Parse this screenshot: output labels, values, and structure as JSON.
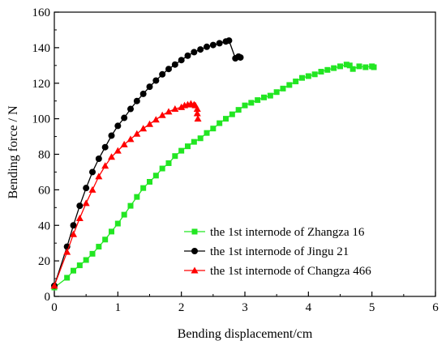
{
  "chart_data": {
    "type": "line",
    "title": "",
    "xlabel": "Bending displacement/cm",
    "ylabel": "Bending force / N",
    "xlim": [
      0,
      6
    ],
    "ylim": [
      0,
      160
    ],
    "xticks": [
      0,
      1,
      2,
      3,
      4,
      5,
      6
    ],
    "yticks": [
      0,
      20,
      40,
      60,
      80,
      100,
      120,
      140,
      160
    ],
    "grid": false,
    "legend_position": "bottom-right",
    "series": [
      {
        "name": "the 1st internode of Zhangza 16",
        "color": "#22e622",
        "marker": "square",
        "x": [
          0,
          0.2,
          0.3,
          0.4,
          0.5,
          0.6,
          0.7,
          0.8,
          0.9,
          1.0,
          1.1,
          1.2,
          1.3,
          1.4,
          1.5,
          1.6,
          1.7,
          1.8,
          1.9,
          2.0,
          2.1,
          2.2,
          2.3,
          2.4,
          2.5,
          2.6,
          2.7,
          2.8,
          2.9,
          3.0,
          3.1,
          3.2,
          3.3,
          3.4,
          3.5,
          3.6,
          3.7,
          3.8,
          3.9,
          4.0,
          4.1,
          4.2,
          4.3,
          4.4,
          4.5,
          4.6,
          4.65,
          4.7,
          4.8,
          4.9,
          5.0,
          5.03
        ],
        "y": [
          5,
          10.5,
          14.5,
          17.5,
          20.5,
          24,
          28,
          32,
          36.5,
          41,
          46,
          51,
          56,
          61,
          64.5,
          68,
          72,
          75,
          79,
          82,
          84.5,
          87,
          89,
          92,
          94.5,
          97.5,
          100,
          102.5,
          105,
          107.5,
          109,
          110.5,
          112,
          113,
          115,
          117,
          119,
          121,
          123,
          124,
          125,
          126.5,
          127.5,
          128.5,
          129.5,
          130.5,
          130,
          128,
          129.5,
          129,
          129.5,
          129
        ]
      },
      {
        "name": "the 1st internode of Jingu 21",
        "color": "#000000",
        "marker": "circle",
        "x": [
          0,
          0.2,
          0.3,
          0.4,
          0.5,
          0.6,
          0.7,
          0.8,
          0.9,
          1.0,
          1.1,
          1.2,
          1.3,
          1.4,
          1.5,
          1.6,
          1.7,
          1.8,
          1.9,
          2.0,
          2.1,
          2.2,
          2.3,
          2.4,
          2.5,
          2.6,
          2.7,
          2.75,
          2.85,
          2.9,
          2.93
        ],
        "y": [
          6,
          28,
          40,
          51,
          61,
          70,
          77.5,
          84,
          90.5,
          96,
          100.5,
          105.5,
          110,
          114,
          118,
          121.5,
          125,
          128,
          130.5,
          133,
          135.5,
          137.5,
          139,
          140.5,
          141.5,
          142.5,
          143.5,
          144,
          134,
          135,
          134.5
        ]
      },
      {
        "name": "the 1st internode of Changza 466",
        "color": "#ff0000",
        "marker": "triangle",
        "x": [
          0,
          0.2,
          0.3,
          0.4,
          0.5,
          0.6,
          0.7,
          0.8,
          0.9,
          1.0,
          1.1,
          1.2,
          1.3,
          1.4,
          1.5,
          1.6,
          1.7,
          1.8,
          1.9,
          2.0,
          2.05,
          2.1,
          2.15,
          2.2,
          2.22,
          2.25,
          2.25,
          2.26
        ],
        "y": [
          6,
          25,
          35,
          44,
          52.5,
          60,
          67.5,
          73.5,
          78.5,
          82,
          85.5,
          88.5,
          91.5,
          94.5,
          97,
          99.5,
          102,
          104,
          105.5,
          106.5,
          107.5,
          108,
          108.5,
          108,
          107.5,
          105.5,
          103,
          100
        ]
      }
    ]
  }
}
